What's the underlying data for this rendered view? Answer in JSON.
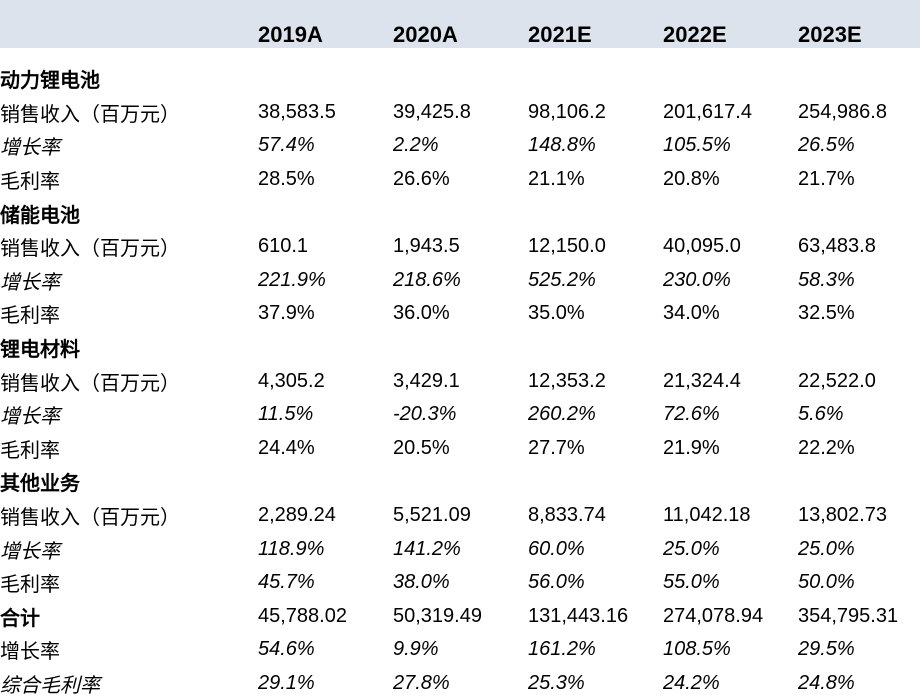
{
  "years": [
    "2019A",
    "2020A",
    "2021E",
    "2022E",
    "2023E"
  ],
  "rows": [
    {
      "kind": "section",
      "label": "动力锂电池"
    },
    {
      "kind": "metric",
      "label": "销售收入（百万元）",
      "values": [
        "38,583.5",
        "39,425.8",
        "98,106.2",
        "201,617.4",
        "254,986.8"
      ],
      "italic_label": false,
      "italic_values": false
    },
    {
      "kind": "metric",
      "label": "增长率",
      "values": [
        "57.4%",
        "2.2%",
        "148.8%",
        "105.5%",
        "26.5%"
      ],
      "italic_label": true,
      "italic_values": true
    },
    {
      "kind": "metric",
      "label": "毛利率",
      "values": [
        "28.5%",
        "26.6%",
        "21.1%",
        "20.8%",
        "21.7%"
      ],
      "italic_label": false,
      "italic_values": false
    },
    {
      "kind": "section",
      "label": "储能电池"
    },
    {
      "kind": "metric",
      "label": "销售收入（百万元）",
      "values": [
        "610.1",
        "1,943.5",
        "12,150.0",
        "40,095.0",
        "63,483.8"
      ],
      "italic_label": false,
      "italic_values": false
    },
    {
      "kind": "metric",
      "label": "增长率",
      "values": [
        "221.9%",
        "218.6%",
        "525.2%",
        "230.0%",
        "58.3%"
      ],
      "italic_label": true,
      "italic_values": true
    },
    {
      "kind": "metric",
      "label": "毛利率",
      "values": [
        "37.9%",
        "36.0%",
        "35.0%",
        "34.0%",
        "32.5%"
      ],
      "italic_label": false,
      "italic_values": false
    },
    {
      "kind": "section",
      "label": "锂电材料"
    },
    {
      "kind": "metric",
      "label": "销售收入（百万元）",
      "values": [
        "4,305.2",
        "3,429.1",
        "12,353.2",
        "21,324.4",
        "22,522.0"
      ],
      "italic_label": false,
      "italic_values": false
    },
    {
      "kind": "metric",
      "label": "增长率",
      "values": [
        "11.5%",
        "-20.3%",
        "260.2%",
        "72.6%",
        "5.6%"
      ],
      "italic_label": true,
      "italic_values": true
    },
    {
      "kind": "metric",
      "label": "毛利率",
      "values": [
        "24.4%",
        "20.5%",
        "27.7%",
        "21.9%",
        "22.2%"
      ],
      "italic_label": false,
      "italic_values": false
    },
    {
      "kind": "section",
      "label": "其他业务"
    },
    {
      "kind": "metric",
      "label": "销售收入（百万元）",
      "values": [
        "2,289.24",
        "5,521.09",
        "8,833.74",
        "11,042.18",
        "13,802.73"
      ],
      "italic_label": false,
      "italic_values": false
    },
    {
      "kind": "metric",
      "label": "增长率",
      "values": [
        "118.9%",
        "141.2%",
        "60.0%",
        "25.0%",
        "25.0%"
      ],
      "italic_label": true,
      "italic_values": true
    },
    {
      "kind": "metric",
      "label": "毛利率",
      "values": [
        "45.7%",
        "38.0%",
        "56.0%",
        "55.0%",
        "50.0%"
      ],
      "italic_label": false,
      "italic_values": true
    },
    {
      "kind": "total",
      "label": "合计",
      "values": [
        "45,788.02",
        "50,319.49",
        "131,443.16",
        "274,078.94",
        "354,795.31"
      ],
      "italic_label": false,
      "italic_values": false
    },
    {
      "kind": "metric",
      "label": "增长率",
      "values": [
        "54.6%",
        "9.9%",
        "161.2%",
        "108.5%",
        "29.5%"
      ],
      "italic_label": false,
      "italic_values": true
    },
    {
      "kind": "metric",
      "label": "综合毛利率",
      "values": [
        "29.1%",
        "27.8%",
        "25.3%",
        "24.2%",
        "24.8%"
      ],
      "italic_label": true,
      "italic_values": true
    }
  ],
  "colors": {
    "header_background": "#dde3ec",
    "text": "#000000",
    "page_background": "#ffffff"
  }
}
